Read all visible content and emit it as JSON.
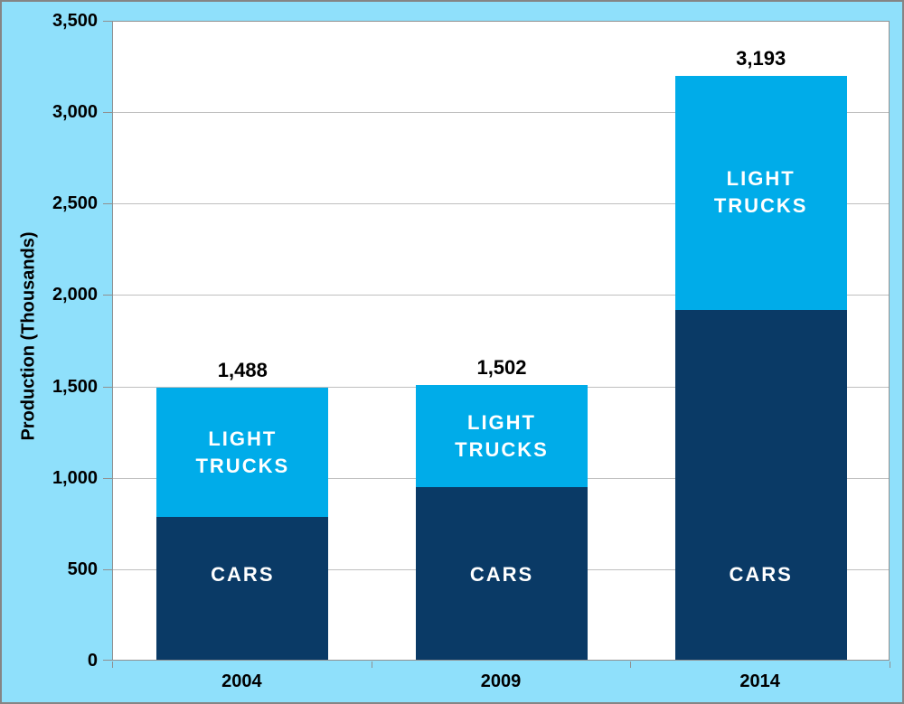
{
  "colors": {
    "background": "#8FE0FB",
    "plot_background": "#FFFFFF",
    "gridline": "#BFBFBF",
    "axis_line": "#909090",
    "frame_border": "#858585",
    "cars_fill": "#0A3A66",
    "light_trucks_fill": "#00ACE9",
    "value_label_text": "#000000",
    "segment_label_text": "#FFFFFF"
  },
  "chart_data": {
    "type": "bar",
    "stacked": true,
    "title": "",
    "ylabel": "Production (Thousands)",
    "xlabel": "",
    "ylim": [
      0,
      3500
    ],
    "ytick_interval": 500,
    "yticks": [
      "0",
      "500",
      "1,000",
      "1,500",
      "2,000",
      "2,500",
      "3,000",
      "3,500"
    ],
    "grid": "horizontal",
    "legend_position": "labels-inside-bars",
    "categories": [
      "2004",
      "2009",
      "2014"
    ],
    "series": [
      {
        "name": "CARS",
        "color": "#0A3A66",
        "values": [
          780,
          945,
          1915
        ]
      },
      {
        "name": "LIGHT TRUCKS",
        "color": "#00ACE9",
        "values": [
          708,
          557,
          1278
        ]
      }
    ],
    "totals_values": [
      1488,
      1502,
      3193
    ],
    "totals_labels": [
      "1,488",
      "1,502",
      "3,193"
    ]
  }
}
